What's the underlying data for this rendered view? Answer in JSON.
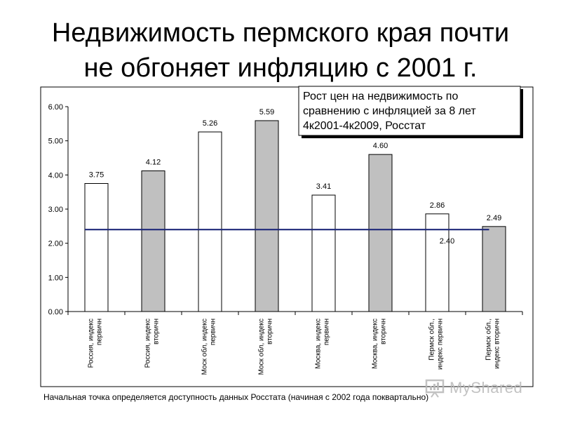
{
  "slide": {
    "title_line1": "Недвижимость пермского края почти",
    "title_line2": "не обгоняет инфляцию с 2001 г.",
    "footnote": "Начальная точка определяется доступность данных Росстата (начиная с 2002 года поквартально)",
    "watermark": "MyShared"
  },
  "colors": {
    "white_bar": "#ffffff",
    "gray_bar": "#c0c0c0",
    "inflation_line": "#1f2a7a",
    "border": "#000000"
  },
  "chart_data": {
    "type": "bar",
    "title": "",
    "legend_box": [
      "Рост цен на недвижимость по",
      "сравнению с инфляцией за 8 лет",
      "4к2001-4к2009, Росстат"
    ],
    "ylim": [
      0,
      6
    ],
    "yticks": [
      "0.00",
      "1.00",
      "2.00",
      "3.00",
      "4.00",
      "5.00",
      "6.00"
    ],
    "grid": false,
    "categories": [
      [
        "Россия, индекс",
        "первичн"
      ],
      [
        "Россия, индекс",
        "вторичн"
      ],
      [
        "Моск обл, индекс",
        "первичн"
      ],
      [
        "Моск обл, индекс",
        "вторичн"
      ],
      [
        "Москва, индекс",
        "первичн"
      ],
      [
        "Москва, индекс",
        "вторичн"
      ],
      [
        "Пермск обл.,",
        "индекс первичн"
      ],
      [
        "Пермск обл.,",
        "индекс вторичн"
      ]
    ],
    "values": [
      3.75,
      4.12,
      5.26,
      5.59,
      3.41,
      4.6,
      2.86,
      2.49
    ],
    "value_labels": [
      "3.75",
      "4.12",
      "5.26",
      "5.59",
      "3.41",
      "4.60",
      "2.86",
      "2.49"
    ],
    "bar_fill": [
      "white",
      "gray",
      "white",
      "gray",
      "white",
      "gray",
      "white",
      "gray"
    ],
    "reference_line": {
      "value": 2.4,
      "label": "2.40"
    }
  }
}
